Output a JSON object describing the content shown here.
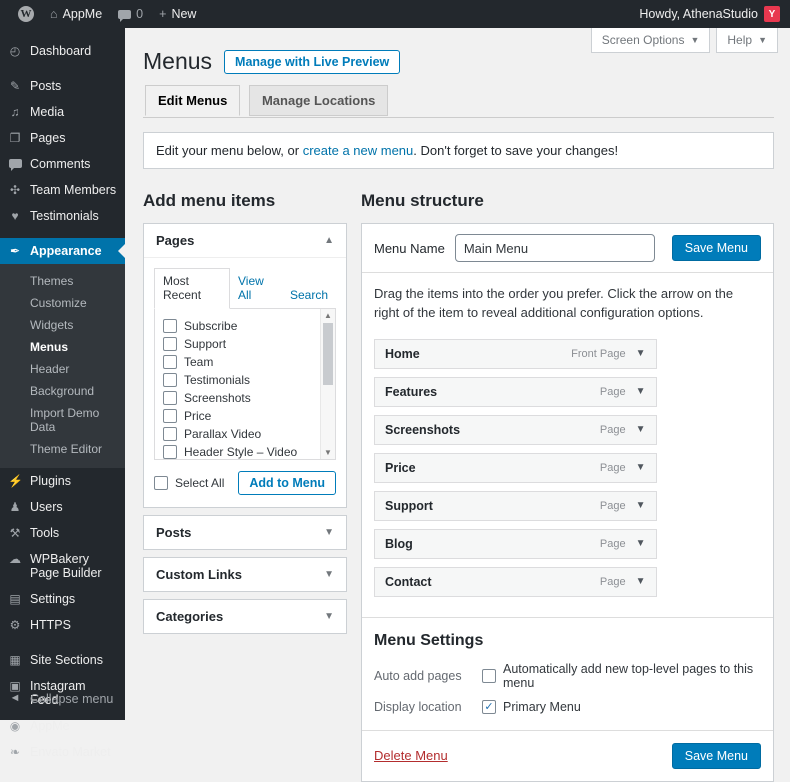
{
  "icons": {
    "check": "✓",
    "arrow_up": "▲",
    "arrow_down": "▼",
    "caret_up": "▲",
    "caret_down": "▼",
    "plus": "+",
    "home": "⌂",
    "wp": "W",
    "collapse": "◄"
  },
  "admin_bar": {
    "site_name": "AppMe",
    "comment_count": "0",
    "new_label": "New",
    "howdy": "Howdy, AthenaStudio",
    "avatar_letter": "Y"
  },
  "sidebar": {
    "items": [
      {
        "icon": "◴",
        "label": "Dashboard"
      },
      {
        "icon": "✎",
        "label": "Posts"
      },
      {
        "icon": "♫",
        "label": "Media"
      },
      {
        "icon": "❐",
        "label": "Pages"
      },
      {
        "icon": "",
        "label": "Comments"
      },
      {
        "icon": "✣",
        "label": "Team Members"
      },
      {
        "icon": "♥",
        "label": "Testimonials"
      }
    ],
    "appearance": {
      "icon": "✒",
      "label": "Appearance"
    },
    "appearance_submenu": [
      {
        "label": "Themes"
      },
      {
        "label": "Customize"
      },
      {
        "label": "Widgets"
      },
      {
        "label": "Menus"
      },
      {
        "label": "Header"
      },
      {
        "label": "Background"
      },
      {
        "label": "Import Demo Data"
      },
      {
        "label": "Theme Editor"
      }
    ],
    "lower_items": [
      {
        "icon": "⚡",
        "label": "Plugins"
      },
      {
        "icon": "♟",
        "label": "Users"
      },
      {
        "icon": "⚒",
        "label": "Tools"
      },
      {
        "icon": "☁",
        "label": "WPBakery Page Builder"
      },
      {
        "icon": "▤",
        "label": "Settings"
      },
      {
        "icon": "⚙",
        "label": "HTTPS"
      }
    ],
    "extra_items": [
      {
        "icon": "▦",
        "label": "Site Sections"
      },
      {
        "icon": "▣",
        "label": "Instagram Feed"
      },
      {
        "icon": "◉",
        "label": "AppMe"
      },
      {
        "icon": "❧",
        "label": "Envato Market"
      }
    ],
    "collapse_label": "Collapse menu"
  },
  "header": {
    "title": "Menus",
    "live_preview_button": "Manage with Live Preview",
    "screen_options": "Screen Options",
    "help": "Help"
  },
  "tabs": {
    "edit_menus": "Edit Menus",
    "manage_locations": "Manage Locations"
  },
  "notice": {
    "before": "Edit your menu below, or ",
    "link": "create a new menu",
    "after": ". Don't forget to save your changes!"
  },
  "add_items": {
    "title": "Add menu items",
    "pages": {
      "title": "Pages",
      "tabs": [
        {
          "label": "Most Recent"
        },
        {
          "label": "View All"
        },
        {
          "label": "Search"
        }
      ],
      "items": [
        {
          "label": "Subscribe"
        },
        {
          "label": "Support"
        },
        {
          "label": "Team"
        },
        {
          "label": "Testimonials"
        },
        {
          "label": "Screenshots"
        },
        {
          "label": "Price"
        },
        {
          "label": "Parallax Video"
        },
        {
          "label": "Header Style – Video"
        }
      ],
      "select_all_label": "Select All",
      "add_button": "Add to Menu"
    },
    "accordions": [
      {
        "title": "Posts"
      },
      {
        "title": "Custom Links"
      },
      {
        "title": "Categories"
      }
    ]
  },
  "menu_structure": {
    "title": "Menu structure",
    "name_label": "Menu Name",
    "name_value": "Main Menu",
    "save_button": "Save Menu",
    "description": "Drag the items into the order you prefer. Click the arrow on the right of the item to reveal additional configuration options.",
    "items": [
      {
        "label": "Home",
        "type": "Front Page"
      },
      {
        "label": "Features",
        "type": "Page"
      },
      {
        "label": "Screenshots",
        "type": "Page"
      },
      {
        "label": "Price",
        "type": "Page"
      },
      {
        "label": "Support",
        "type": "Page"
      },
      {
        "label": "Blog",
        "type": "Page"
      },
      {
        "label": "Contact",
        "type": "Page"
      }
    ],
    "settings": {
      "title": "Menu Settings",
      "auto_add_label": "Auto add pages",
      "auto_add_text": "Automatically add new top-level pages to this menu",
      "display_label": "Display location",
      "display_text": "Primary Menu"
    },
    "delete_link": "Delete Menu",
    "save_button_bottom": "Save Menu"
  },
  "colors": {
    "accent_blue": "#0073aa",
    "button_primary": "#007cba",
    "sidebar_bg": "#23282d",
    "content_bg": "#f1f1f1",
    "delete_red": "#b32d2e"
  }
}
